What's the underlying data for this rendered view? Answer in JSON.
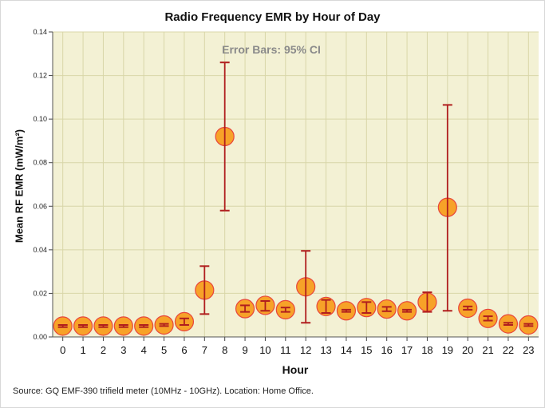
{
  "chart_data": {
    "type": "scatter",
    "title": "Radio Frequency EMR by Hour of Day",
    "xlabel": "Hour",
    "ylabel": "Mean RF EMR (mW/m²)",
    "annotation": "Error Bars: 95% CI",
    "source": "Source: GQ EMF-390 trifield meter (10MHz - 10GHz). Location: Home Office.",
    "ylim": [
      0,
      0.14
    ],
    "yticks": [
      "0.00",
      "0.02",
      "0.04",
      "0.06",
      "0.08",
      "0.10",
      "0.12",
      "0.14"
    ],
    "ytick_values": [
      0,
      0.02,
      0.04,
      0.06,
      0.08,
      0.1,
      0.12,
      0.14
    ],
    "categories": [
      "0",
      "1",
      "2",
      "3",
      "4",
      "5",
      "6",
      "7",
      "8",
      "9",
      "10",
      "11",
      "12",
      "13",
      "14",
      "15",
      "16",
      "17",
      "18",
      "19",
      "20",
      "21",
      "22",
      "23"
    ],
    "values": [
      0.005,
      0.005,
      0.005,
      0.005,
      0.005,
      0.0055,
      0.007,
      0.0215,
      0.092,
      0.013,
      0.0145,
      0.0125,
      0.023,
      0.014,
      0.012,
      0.0135,
      0.0128,
      0.012,
      0.016,
      0.0595,
      0.0132,
      0.0085,
      0.006,
      0.0055
    ],
    "ci_low": [
      0.0045,
      0.0045,
      0.0045,
      0.0045,
      0.0045,
      0.005,
      0.0055,
      0.0105,
      0.058,
      0.0115,
      0.012,
      0.0115,
      0.0065,
      0.011,
      0.0115,
      0.011,
      0.0118,
      0.0115,
      0.0115,
      0.012,
      0.0125,
      0.0075,
      0.0055,
      0.005
    ],
    "ci_high": [
      0.0055,
      0.0055,
      0.0055,
      0.0055,
      0.0055,
      0.006,
      0.0085,
      0.0325,
      0.126,
      0.0145,
      0.0165,
      0.0135,
      0.0395,
      0.017,
      0.0125,
      0.016,
      0.0138,
      0.0125,
      0.0205,
      0.1065,
      0.014,
      0.0095,
      0.0065,
      0.006
    ],
    "colors": {
      "marker_fill": "#f7a228",
      "marker_edge": "#e8453c",
      "errorbar": "#b01e1e",
      "plot_bg": "#f3f1d4",
      "grid": "#d8d6a8"
    }
  }
}
